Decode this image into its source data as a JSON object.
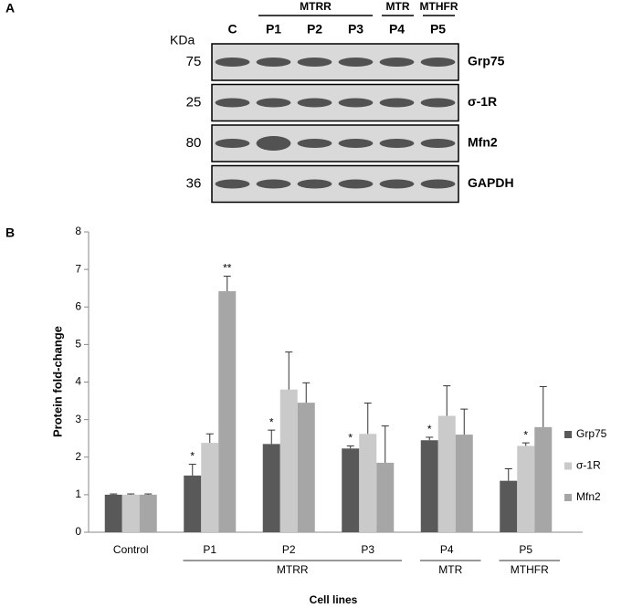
{
  "panel_a": {
    "label": "A",
    "mw_unit": "KDa",
    "lanes": [
      "C",
      "P1",
      "P2",
      "P3",
      "P4",
      "P5"
    ],
    "lane_groups": [
      {
        "label": null,
        "size": 1
      },
      {
        "label": "MTRR",
        "size": 3
      },
      {
        "label": "MTR",
        "size": 1
      },
      {
        "label": "MTHFR",
        "size": 1
      }
    ],
    "blots": [
      {
        "mw": "75",
        "protein": "Grp75"
      },
      {
        "mw": "25",
        "protein": "σ-1R"
      },
      {
        "mw": "80",
        "protein": "Mfn2"
      },
      {
        "mw": "36",
        "protein": "GAPDH"
      }
    ]
  },
  "chart_data": {
    "type": "bar",
    "panel_label": "B",
    "x_label": "Cell lines",
    "y_label": "Protein fold-change",
    "categories": [
      "Control",
      "P1",
      "P2",
      "P3",
      "P4",
      "P5"
    ],
    "groups": [
      {
        "label": null,
        "size": 1
      },
      {
        "label": "MTRR",
        "size": 3
      },
      {
        "label": "MTR",
        "size": 1
      },
      {
        "label": "MTHFR",
        "size": 1
      }
    ],
    "series": [
      {
        "name": "Grp75",
        "color": "#595959",
        "values": [
          1.0,
          1.51,
          2.35,
          2.23,
          2.45,
          1.37
        ],
        "errors": [
          0.02,
          0.3,
          0.37,
          0.07,
          0.08,
          0.32
        ],
        "annotations": [
          null,
          "*",
          "*",
          "*",
          "*",
          null
        ]
      },
      {
        "name": "σ-1R",
        "color": "#cacaca",
        "values": [
          1.0,
          2.38,
          3.8,
          2.62,
          3.1,
          2.3
        ],
        "errors": [
          0.02,
          0.24,
          1.0,
          0.82,
          0.8,
          0.08
        ],
        "annotations": [
          null,
          null,
          null,
          null,
          null,
          "*"
        ]
      },
      {
        "name": "Mfn2",
        "color": "#a6a6a6",
        "values": [
          1.0,
          6.42,
          3.45,
          1.85,
          2.6,
          2.8
        ],
        "errors": [
          0.02,
          0.4,
          0.53,
          0.98,
          0.68,
          1.08
        ],
        "annotations": [
          null,
          "**",
          null,
          null,
          null,
          null
        ]
      }
    ],
    "ylim": [
      0,
      8
    ],
    "yticks": [
      0,
      1,
      2,
      3,
      4,
      5,
      6,
      7,
      8
    ],
    "grid": false,
    "legend": "right"
  }
}
